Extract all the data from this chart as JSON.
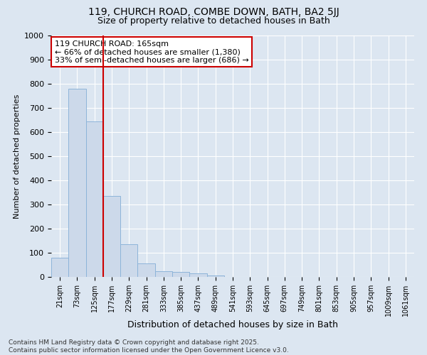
{
  "title1": "119, CHURCH ROAD, COMBE DOWN, BATH, BA2 5JJ",
  "title2": "Size of property relative to detached houses in Bath",
  "xlabel": "Distribution of detached houses by size in Bath",
  "ylabel": "Number of detached properties",
  "categories": [
    "21sqm",
    "73sqm",
    "125sqm",
    "177sqm",
    "229sqm",
    "281sqm",
    "333sqm",
    "385sqm",
    "437sqm",
    "489sqm",
    "541sqm",
    "593sqm",
    "645sqm",
    "697sqm",
    "749sqm",
    "801sqm",
    "853sqm",
    "905sqm",
    "957sqm",
    "1009sqm",
    "1061sqm"
  ],
  "values": [
    80,
    780,
    645,
    335,
    135,
    57,
    25,
    20,
    15,
    5,
    0,
    0,
    0,
    0,
    0,
    0,
    0,
    0,
    0,
    0,
    0
  ],
  "bar_color": "#ccd9ea",
  "bar_edge_color": "#8db4d9",
  "vline_x": 2.5,
  "annotation_text": "119 CHURCH ROAD: 165sqm\n← 66% of detached houses are smaller (1,380)\n33% of semi-detached houses are larger (686) →",
  "annotation_box_color": "#ffffff",
  "annotation_box_edge_color": "#cc0000",
  "vline_color": "#cc0000",
  "ylim": [
    0,
    1000
  ],
  "yticks": [
    0,
    100,
    200,
    300,
    400,
    500,
    600,
    700,
    800,
    900,
    1000
  ],
  "bg_color": "#dce6f1",
  "plot_bg_color": "#dce6f1",
  "footer1": "Contains HM Land Registry data © Crown copyright and database right 2025.",
  "footer2": "Contains public sector information licensed under the Open Government Licence v3.0.",
  "grid_color": "#ffffff",
  "title1_fontsize": 10,
  "title2_fontsize": 9
}
